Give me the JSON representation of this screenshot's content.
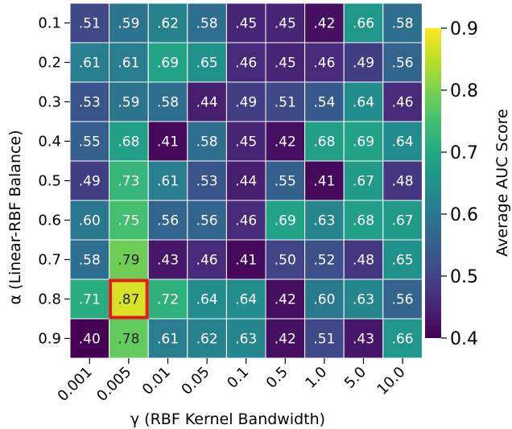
{
  "chart_data": {
    "type": "heatmap",
    "title": "",
    "xlabel": "γ (RBF Kernel Bandwidth)",
    "ylabel": "α (Linear-RBF Balance)",
    "x_categories": [
      "0.001",
      "0.005",
      "0.01",
      "0.05",
      "0.1",
      "0.5",
      "1.0",
      "5.0",
      "10.0"
    ],
    "y_categories": [
      "0.1",
      "0.2",
      "0.3",
      "0.4",
      "0.5",
      "0.6",
      "0.7",
      "0.8",
      "0.9"
    ],
    "values": [
      [
        0.51,
        0.59,
        0.62,
        0.58,
        0.45,
        0.45,
        0.42,
        0.66,
        0.58
      ],
      [
        0.61,
        0.61,
        0.69,
        0.65,
        0.46,
        0.45,
        0.46,
        0.49,
        0.56
      ],
      [
        0.53,
        0.59,
        0.58,
        0.44,
        0.49,
        0.51,
        0.54,
        0.64,
        0.46
      ],
      [
        0.55,
        0.68,
        0.41,
        0.58,
        0.45,
        0.42,
        0.68,
        0.69,
        0.64
      ],
      [
        0.49,
        0.73,
        0.61,
        0.53,
        0.44,
        0.55,
        0.41,
        0.67,
        0.48
      ],
      [
        0.6,
        0.75,
        0.56,
        0.56,
        0.46,
        0.69,
        0.63,
        0.68,
        0.67
      ],
      [
        0.58,
        0.79,
        0.43,
        0.46,
        0.41,
        0.5,
        0.52,
        0.48,
        0.65
      ],
      [
        0.71,
        0.87,
        0.72,
        0.64,
        0.64,
        0.42,
        0.6,
        0.63,
        0.56
      ],
      [
        0.4,
        0.78,
        0.61,
        0.62,
        0.63,
        0.42,
        0.51,
        0.43,
        0.66
      ]
    ],
    "cell_labels": [
      [
        ".51",
        ".59",
        ".62",
        ".58",
        ".45",
        ".45",
        ".42",
        ".66",
        ".58"
      ],
      [
        ".61",
        ".61",
        ".69",
        ".65",
        ".46",
        ".45",
        ".46",
        ".49",
        ".56"
      ],
      [
        ".53",
        ".59",
        ".58",
        ".44",
        ".49",
        ".51",
        ".54",
        ".64",
        ".46"
      ],
      [
        ".55",
        ".68",
        ".41",
        ".58",
        ".45",
        ".42",
        ".68",
        ".69",
        ".64"
      ],
      [
        ".49",
        ".73",
        ".61",
        ".53",
        ".44",
        ".55",
        ".41",
        ".67",
        ".48"
      ],
      [
        ".60",
        ".75",
        ".56",
        ".56",
        ".46",
        ".69",
        ".63",
        ".68",
        ".67"
      ],
      [
        ".58",
        ".79",
        ".43",
        ".46",
        ".41",
        ".50",
        ".52",
        ".48",
        ".65"
      ],
      [
        ".71",
        ".87",
        ".72",
        ".64",
        ".64",
        ".42",
        ".60",
        ".63",
        ".56"
      ],
      [
        ".40",
        ".78",
        ".61",
        ".62",
        ".63",
        ".42",
        ".51",
        ".43",
        ".66"
      ]
    ],
    "highlight": {
      "row": 7,
      "col": 1,
      "color": "#e31a1c"
    },
    "colorbar": {
      "label": "Average AUC Score",
      "min": 0.4,
      "max": 0.9,
      "ticks": [
        {
          "value": 0.4,
          "label": "0.4"
        },
        {
          "value": 0.5,
          "label": "0.5"
        },
        {
          "value": 0.6,
          "label": "0.6"
        },
        {
          "value": 0.7,
          "label": "0.7"
        },
        {
          "value": 0.8,
          "label": "0.8"
        },
        {
          "value": 0.9,
          "label": "0.9"
        }
      ],
      "colormap": "viridis"
    },
    "grid": true,
    "legend": "none"
  }
}
